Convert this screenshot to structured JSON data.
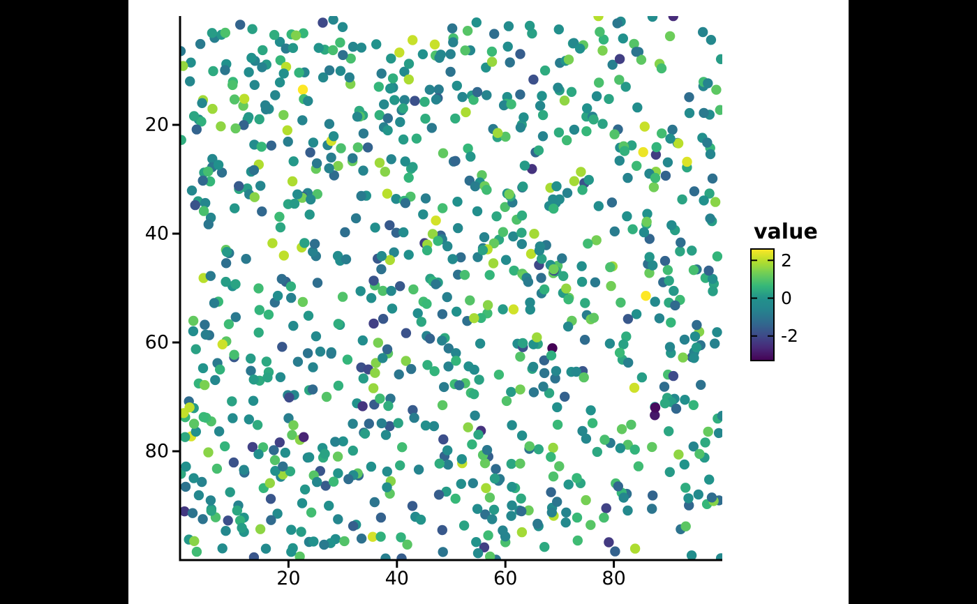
{
  "figure": {
    "outer_background": "#000000",
    "canvas_background": "#ffffff",
    "axis_color": "#000000",
    "text_color": "#000000"
  },
  "chart_data": {
    "type": "scatter",
    "title": "",
    "xlabel": "",
    "ylabel": "",
    "grid": "off",
    "x_axis": {
      "range": [
        0,
        100
      ],
      "ticks": [
        20,
        40,
        60,
        80
      ]
    },
    "y_axis": {
      "range": [
        0,
        100
      ],
      "ticks": [
        20,
        40,
        60,
        80
      ],
      "direction": "reversed: 0 at top, 100 at bottom"
    },
    "legend": {
      "title": "value",
      "position": "right",
      "ticks": [
        2,
        0,
        -2
      ],
      "limits": [
        -3.3,
        2.6
      ]
    },
    "colormap": {
      "name": "viridis",
      "stops": [
        "#440154",
        "#482878",
        "#3e4a89",
        "#31688e",
        "#26828e",
        "#21918c",
        "#35b779",
        "#6dcd59",
        "#b4de2c",
        "#fde725"
      ]
    },
    "points": {
      "n": 1000,
      "x_range": [
        0,
        100
      ],
      "y_range": [
        0,
        100
      ],
      "value_distribution": "normal(mean 0, sd 1), clamped to legend limits",
      "seed": 42,
      "radius_px": 7.2
    }
  }
}
